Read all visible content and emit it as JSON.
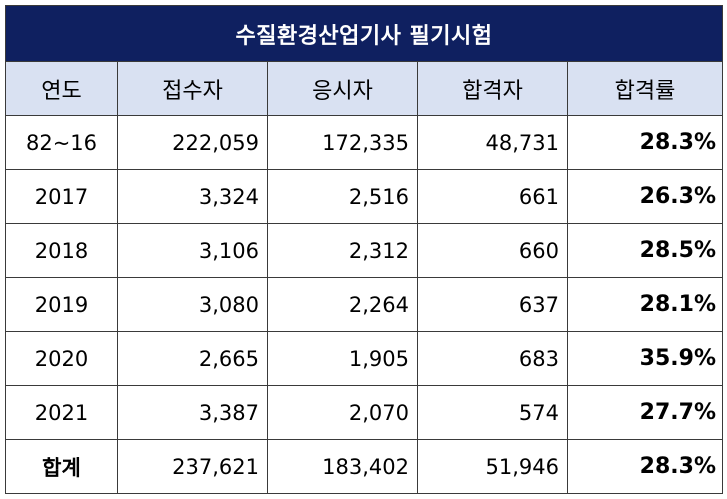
{
  "title": "수질환경산업기사 필기시험",
  "headers": [
    "연도",
    "접수자",
    "응시자",
    "합격자",
    "합격률"
  ],
  "rows": [
    {
      "year": "82~16",
      "applicants": "222,059",
      "examinees": "172,335",
      "passers": "48,731",
      "rate": "28.3%"
    },
    {
      "year": "2017",
      "applicants": "3,324",
      "examinees": "2,516",
      "passers": "661",
      "rate": "26.3%"
    },
    {
      "year": "2018",
      "applicants": "3,106",
      "examinees": "2,312",
      "passers": "660",
      "rate": "28.5%"
    },
    {
      "year": "2019",
      "applicants": "3,080",
      "examinees": "2,264",
      "passers": "637",
      "rate": "28.1%"
    },
    {
      "year": "2020",
      "applicants": "2,665",
      "examinees": "1,905",
      "passers": "683",
      "rate": "35.9%"
    },
    {
      "year": "2021",
      "applicants": "3,387",
      "examinees": "2,070",
      "passers": "574",
      "rate": "27.7%"
    }
  ],
  "total": {
    "year": "합계",
    "applicants": "237,621",
    "examinees": "183,402",
    "passers": "51,946",
    "rate": "28.3%"
  },
  "colors": {
    "title_bg": "#0f2060",
    "header_bg": "#d9e1f2",
    "border": "#3a3a3a"
  }
}
